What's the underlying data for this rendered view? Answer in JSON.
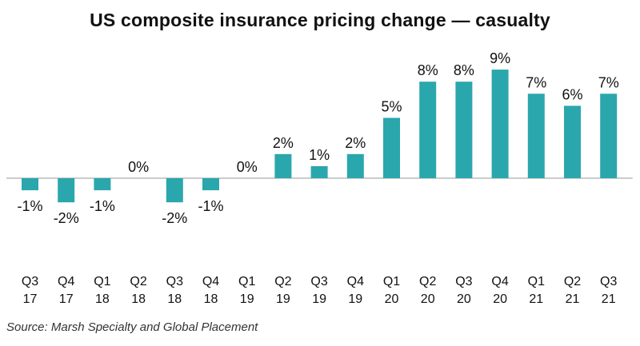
{
  "chart_data": {
    "type": "bar",
    "title": "US composite insurance pricing change — casualty",
    "source": "Source: Marsh Specialty and Global Placement",
    "categories": [
      [
        "Q3",
        "17"
      ],
      [
        "Q4",
        "17"
      ],
      [
        "Q1",
        "18"
      ],
      [
        "Q2",
        "18"
      ],
      [
        "Q3",
        "18"
      ],
      [
        "Q4",
        "18"
      ],
      [
        "Q1",
        "19"
      ],
      [
        "Q2",
        "19"
      ],
      [
        "Q3",
        "19"
      ],
      [
        "Q4",
        "19"
      ],
      [
        "Q1",
        "20"
      ],
      [
        "Q2",
        "20"
      ],
      [
        "Q3",
        "20"
      ],
      [
        "Q4",
        "20"
      ],
      [
        "Q1",
        "21"
      ],
      [
        "Q2",
        "21"
      ],
      [
        "Q3",
        "21"
      ]
    ],
    "values": [
      -1,
      -2,
      -1,
      0,
      -2,
      -1,
      0,
      2,
      1,
      2,
      5,
      8,
      8,
      9,
      7,
      6,
      7
    ],
    "data_labels": [
      "-1%",
      "-2%",
      "-1%",
      "0%",
      "-2%",
      "-1%",
      "0%",
      "2%",
      "1%",
      "2%",
      "5%",
      "8%",
      "8%",
      "9%",
      "7%",
      "6%",
      "7%"
    ],
    "ylim": [
      -2,
      9
    ],
    "xlabel": "",
    "ylabel": "",
    "grid": false,
    "bar_color": "#2aa7ad",
    "axis_color": "#999999"
  }
}
